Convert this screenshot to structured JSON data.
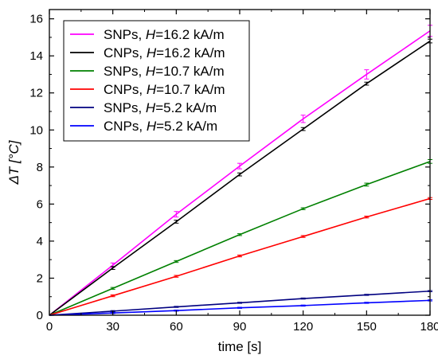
{
  "chart_data": {
    "type": "line",
    "xlabel": "time [s]",
    "ylabel": "ΔT [°C]",
    "xlim": [
      0,
      180
    ],
    "ylim": [
      0,
      16.5
    ],
    "xticks": [
      "0",
      "30",
      "60",
      "90",
      "120",
      "150",
      "180"
    ],
    "yticks": [
      "0",
      "2",
      "4",
      "6",
      "8",
      "10",
      "12",
      "14",
      "16"
    ],
    "grid": false,
    "legend_position": "top-left",
    "x": [
      0,
      30,
      60,
      90,
      120,
      150,
      180
    ],
    "series": [
      {
        "name": "SNPs, H=16.2 kA/m",
        "legend": {
          "prefix": "SNPs, ",
          "var": "H",
          "suffix": "=16.2 kA/m"
        },
        "color": "#ff00ff",
        "values": [
          0,
          2.7,
          5.45,
          8.05,
          10.6,
          13.0,
          15.35
        ],
        "errors": [
          0,
          0.12,
          0.15,
          0.15,
          0.2,
          0.25,
          0.3
        ]
      },
      {
        "name": "CNPs, H=16.2 kA/m",
        "legend": {
          "prefix": "CNPs, ",
          "var": "H",
          "suffix": "=16.2 kA/m"
        },
        "color": "#000000",
        "values": [
          0,
          2.55,
          5.05,
          7.6,
          10.05,
          12.5,
          14.8
        ],
        "errors": [
          0,
          0.08,
          0.08,
          0.08,
          0.08,
          0.08,
          0.1
        ]
      },
      {
        "name": "SNPs, H=10.7 kA/m",
        "legend": {
          "prefix": "SNPs, ",
          "var": "H",
          "suffix": "=10.7 kA/m"
        },
        "color": "#008000",
        "values": [
          0,
          1.45,
          2.9,
          4.35,
          5.75,
          7.05,
          8.3
        ],
        "errors": [
          0,
          0.05,
          0.05,
          0.05,
          0.05,
          0.08,
          0.1
        ]
      },
      {
        "name": "CNPs, H=10.7 kA/m",
        "legend": {
          "prefix": "CNPs, ",
          "var": "H",
          "suffix": "=10.7 kA/m"
        },
        "color": "#ff0000",
        "values": [
          0,
          1.05,
          2.1,
          3.2,
          4.25,
          5.3,
          6.3
        ],
        "errors": [
          0,
          0.05,
          0.05,
          0.05,
          0.05,
          0.05,
          0.05
        ]
      },
      {
        "name": "SNPs, H=5.2 kA/m",
        "legend": {
          "prefix": "SNPs, ",
          "var": "H",
          "suffix": "=5.2 kA/m"
        },
        "color": "#000080",
        "values": [
          0,
          0.22,
          0.45,
          0.67,
          0.9,
          1.1,
          1.3
        ],
        "errors": [
          0,
          0.03,
          0.03,
          0.03,
          0.03,
          0.03,
          0.03
        ]
      },
      {
        "name": "CNPs, H=5.2 kA/m",
        "legend": {
          "prefix": "CNPs, ",
          "var": "H",
          "suffix": "=5.2 kA/m"
        },
        "color": "#0000ff",
        "values": [
          0,
          0.12,
          0.25,
          0.4,
          0.52,
          0.67,
          0.8
        ],
        "errors": [
          0,
          0.03,
          0.03,
          0.03,
          0.03,
          0.03,
          0.03
        ]
      }
    ]
  }
}
